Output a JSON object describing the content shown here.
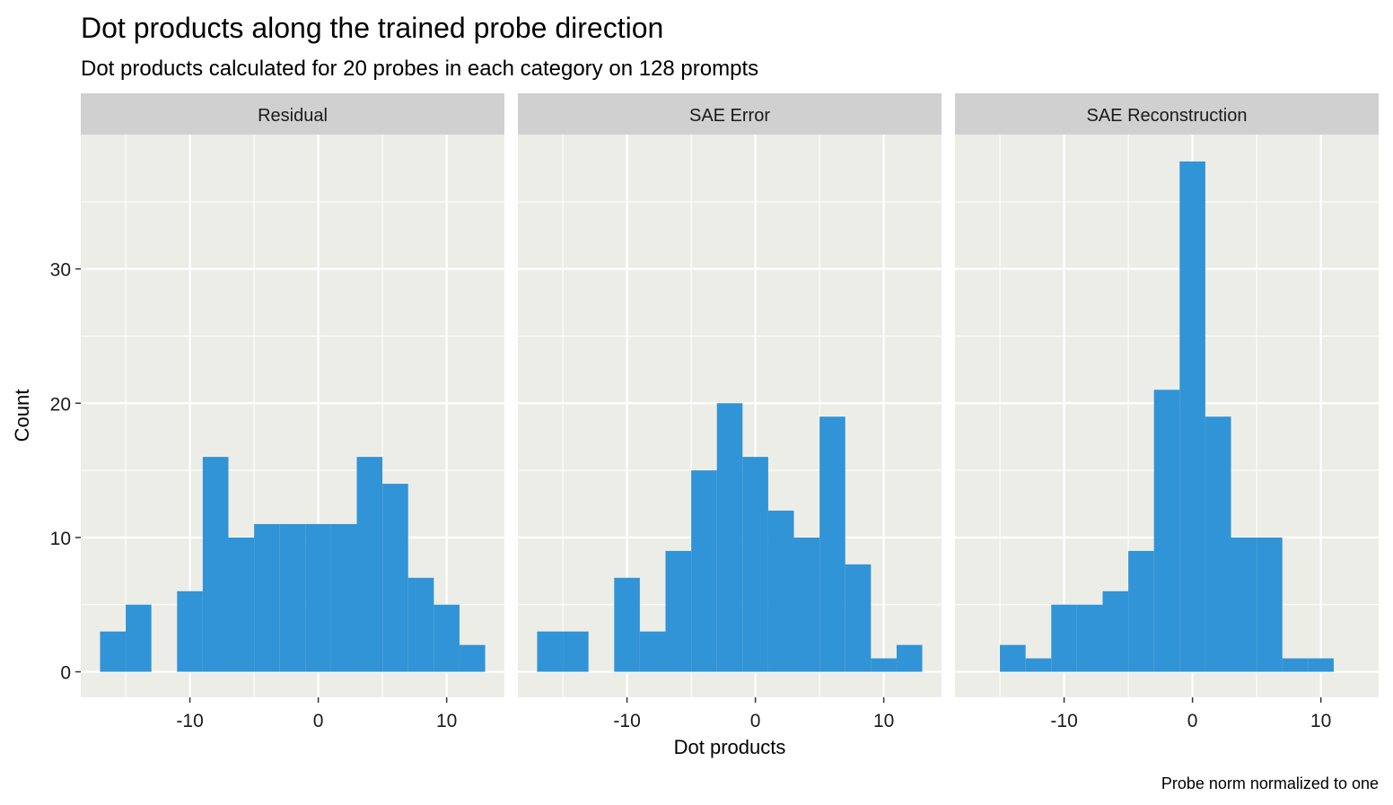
{
  "chart_data": {
    "type": "histogram",
    "title": "Dot products along the trained probe direction",
    "subtitle": "Dot products calculated for 20 probes in each category on 128 prompts",
    "caption": "Probe norm normalized to one",
    "xlabel": "Dot products",
    "ylabel": "Count",
    "xlim": [
      -18.5,
      14.5
    ],
    "ylim": [
      -1.9,
      40
    ],
    "x_ticks": [
      -10,
      0,
      10
    ],
    "x_tick_labels": [
      "-10",
      "0",
      "10"
    ],
    "y_ticks": [
      0,
      10,
      20,
      30
    ],
    "y_tick_labels": [
      "0",
      "10",
      "20",
      "30"
    ],
    "bin_width": 2,
    "bin_starts": [
      -17,
      -15,
      -13,
      -11,
      -9,
      -7,
      -5,
      -3,
      -1,
      1,
      3,
      5,
      7,
      9,
      11
    ],
    "bar_color": "#3194d6",
    "panel_background": "#ededE8",
    "strip_background": "#d0d0d0",
    "series": [
      {
        "name": "Residual",
        "values": [
          3,
          5,
          0,
          6,
          16,
          10,
          11,
          11,
          11,
          11,
          16,
          14,
          7,
          5,
          2
        ]
      },
      {
        "name": "SAE Error",
        "values": [
          3,
          3,
          0,
          7,
          3,
          9,
          15,
          20,
          16,
          12,
          10,
          19,
          8,
          1,
          2
        ]
      },
      {
        "name": "SAE Reconstruction",
        "values": [
          0,
          2,
          1,
          5,
          5,
          6,
          9,
          21,
          38,
          19,
          10,
          10,
          1,
          1,
          0
        ]
      }
    ]
  }
}
